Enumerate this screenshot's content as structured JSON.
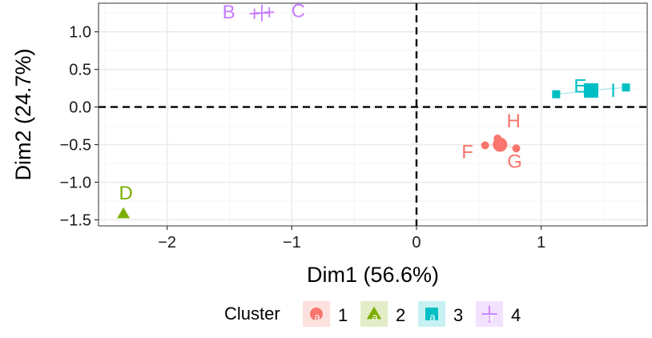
{
  "chart_data": {
    "type": "scatter",
    "title": "",
    "xlabel": "Dim1 (56.6%)",
    "ylabel": "Dim2 (24.7%)",
    "xlim": [
      -2.55,
      1.85
    ],
    "ylim": [
      -1.58,
      1.38
    ],
    "x_ticks": [
      -2,
      -1,
      0,
      1
    ],
    "x_tick_labels": [
      "−2",
      "−1",
      "0",
      "1"
    ],
    "y_ticks": [
      -1.5,
      -1.0,
      -0.5,
      0.0,
      0.5,
      1.0
    ],
    "y_tick_labels": [
      "−1.5",
      "−1.0",
      "−0.5",
      "0.0",
      "0.5",
      "1.0"
    ],
    "grid": true,
    "reference_lines": {
      "x": 0,
      "y": 0,
      "style": "dashed"
    },
    "legend": {
      "title": "Cluster",
      "position": "bottom",
      "entries": [
        {
          "label": "1",
          "shape": "circle",
          "color": "#F8766D"
        },
        {
          "label": "2",
          "shape": "triangle",
          "color": "#7CAE00"
        },
        {
          "label": "3",
          "shape": "square",
          "color": "#00BFC4"
        },
        {
          "label": "4",
          "shape": "cross",
          "color": "#C77CFF"
        }
      ]
    },
    "series": [
      {
        "name": "1",
        "color": "#F8766D",
        "shape": "circle",
        "centroid": {
          "x": 0.67,
          "y": -0.5
        },
        "points": [
          {
            "label": "F",
            "x": 0.55,
            "y": -0.51
          },
          {
            "label": "G",
            "x": 0.8,
            "y": -0.55
          },
          {
            "label": "H",
            "x": 0.65,
            "y": -0.42
          }
        ]
      },
      {
        "name": "2",
        "color": "#7CAE00",
        "shape": "triangle",
        "centroid": {
          "x": -2.35,
          "y": -1.42
        },
        "points": [
          {
            "label": "D",
            "x": -2.35,
            "y": -1.42
          }
        ]
      },
      {
        "name": "3",
        "color": "#00BFC4",
        "shape": "square",
        "centroid": {
          "x": 1.4,
          "y": 0.22
        },
        "points": [
          {
            "label": "E",
            "x": 1.12,
            "y": 0.17
          },
          {
            "label": "I",
            "x": 1.68,
            "y": 0.26
          }
        ]
      },
      {
        "name": "4",
        "color": "#C77CFF",
        "shape": "cross",
        "centroid": {
          "x": -1.24,
          "y": 1.25
        },
        "points": [
          {
            "label": "B",
            "x": -1.3,
            "y": 1.24
          },
          {
            "label": "C",
            "x": -1.18,
            "y": 1.26
          }
        ]
      }
    ]
  }
}
